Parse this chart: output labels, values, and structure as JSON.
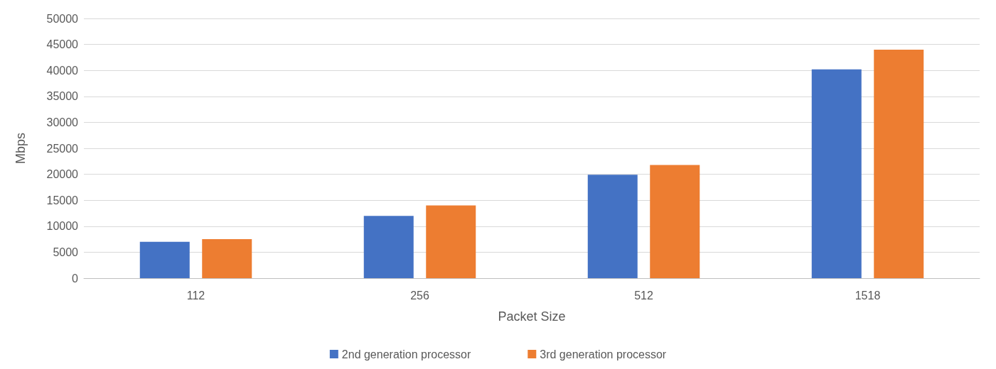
{
  "chart_data": {
    "type": "bar",
    "xlabel": "Packet Size",
    "ylabel": "Mbps",
    "categories": [
      "112",
      "256",
      "512",
      "1518"
    ],
    "series": [
      {
        "name": "2nd generation processor",
        "color": "#4472c4",
        "values": [
          7000,
          12000,
          19900,
          40200
        ]
      },
      {
        "name": "3rd generation processor",
        "color": "#ed7d31",
        "values": [
          7500,
          14000,
          21800,
          44000
        ]
      }
    ],
    "ylim": [
      0,
      50000
    ],
    "yticks": [
      0,
      5000,
      10000,
      15000,
      20000,
      25000,
      30000,
      35000,
      40000,
      45000,
      50000
    ],
    "grid": "y",
    "legend": "bottom"
  }
}
